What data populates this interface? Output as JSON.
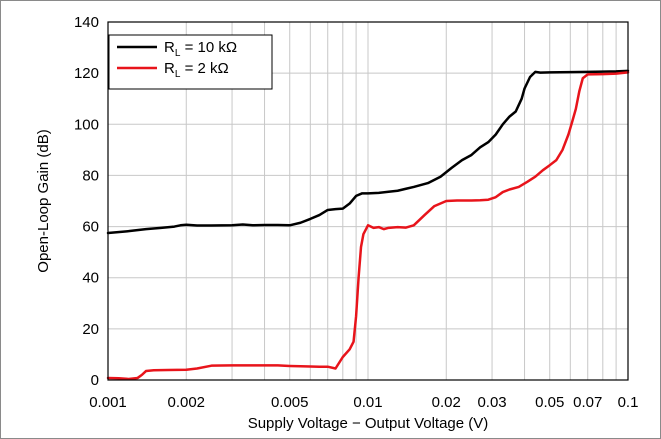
{
  "chart_data": {
    "type": "line",
    "xlabel": "Supply Voltage − Output Voltage (V)",
    "ylabel": "Open-Loop Gain (dB)",
    "x_scale": "log",
    "xlim": [
      0.001,
      0.1
    ],
    "ylim": [
      0,
      140
    ],
    "grid": true,
    "legend_placement": "top-left",
    "x_tick_values": [
      0.001,
      0.002,
      0.005,
      0.01,
      0.02,
      0.03,
      0.05,
      0.07,
      0.1
    ],
    "x_tick_labels": [
      "0.001",
      "0.002",
      "0.005",
      "0.01",
      "0.02",
      "0.03",
      "0.05",
      "0.07",
      "0.1"
    ],
    "y_tick_values": [
      0,
      20,
      40,
      60,
      80,
      100,
      120,
      140
    ],
    "y_tick_labels": [
      "0",
      "20",
      "40",
      "60",
      "80",
      "100",
      "120",
      "140"
    ],
    "series": [
      {
        "name": "R_L = 10 kΩ",
        "label_main": "R",
        "label_sub": "L",
        "label_rest": " = 10 kΩ",
        "color": "#000000",
        "points": [
          [
            0.001,
            57.5
          ],
          [
            0.0012,
            58.2
          ],
          [
            0.0014,
            59.0
          ],
          [
            0.0016,
            59.5
          ],
          [
            0.0018,
            60.0
          ],
          [
            0.0019,
            60.5
          ],
          [
            0.002,
            60.7
          ],
          [
            0.0022,
            60.4
          ],
          [
            0.0025,
            60.4
          ],
          [
            0.003,
            60.5
          ],
          [
            0.0033,
            60.8
          ],
          [
            0.0036,
            60.5
          ],
          [
            0.004,
            60.6
          ],
          [
            0.0045,
            60.6
          ],
          [
            0.005,
            60.5
          ],
          [
            0.0055,
            61.5
          ],
          [
            0.006,
            63.0
          ],
          [
            0.0065,
            64.5
          ],
          [
            0.007,
            66.5
          ],
          [
            0.0075,
            66.8
          ],
          [
            0.008,
            67.0
          ],
          [
            0.0085,
            69.0
          ],
          [
            0.009,
            72.0
          ],
          [
            0.0095,
            73.0
          ],
          [
            0.01,
            73.0
          ],
          [
            0.011,
            73.2
          ],
          [
            0.012,
            73.6
          ],
          [
            0.013,
            74.0
          ],
          [
            0.014,
            74.8
          ],
          [
            0.015,
            75.5
          ],
          [
            0.017,
            77.0
          ],
          [
            0.019,
            79.5
          ],
          [
            0.021,
            83.0
          ],
          [
            0.023,
            86.0
          ],
          [
            0.025,
            88.0
          ],
          [
            0.027,
            91.0
          ],
          [
            0.029,
            93.0
          ],
          [
            0.031,
            96.0
          ],
          [
            0.033,
            100.0
          ],
          [
            0.035,
            103.0
          ],
          [
            0.037,
            105.0
          ],
          [
            0.039,
            110.0
          ],
          [
            0.04,
            114.0
          ],
          [
            0.042,
            118.5
          ],
          [
            0.044,
            120.5
          ],
          [
            0.046,
            120.2
          ],
          [
            0.05,
            120.3
          ],
          [
            0.06,
            120.4
          ],
          [
            0.07,
            120.5
          ],
          [
            0.08,
            120.6
          ],
          [
            0.09,
            120.7
          ],
          [
            0.1,
            120.9
          ]
        ]
      },
      {
        "name": "R_L = 2 kΩ",
        "label_main": "R",
        "label_sub": "L",
        "label_rest": " = 2 kΩ",
        "color": "#e8141b",
        "points": [
          [
            0.001,
            0.8
          ],
          [
            0.0011,
            0.7
          ],
          [
            0.0012,
            0.4
          ],
          [
            0.0013,
            0.8
          ],
          [
            0.00135,
            2.0
          ],
          [
            0.0014,
            3.5
          ],
          [
            0.0015,
            3.8
          ],
          [
            0.0017,
            3.9
          ],
          [
            0.002,
            4.0
          ],
          [
            0.0022,
            4.5
          ],
          [
            0.0025,
            5.6
          ],
          [
            0.003,
            5.7
          ],
          [
            0.0035,
            5.7
          ],
          [
            0.004,
            5.7
          ],
          [
            0.0045,
            5.7
          ],
          [
            0.005,
            5.5
          ],
          [
            0.0055,
            5.4
          ],
          [
            0.006,
            5.3
          ],
          [
            0.0065,
            5.2
          ],
          [
            0.007,
            5.2
          ],
          [
            0.0075,
            4.5
          ],
          [
            0.008,
            9.0
          ],
          [
            0.0085,
            12.0
          ],
          [
            0.0088,
            15.0
          ],
          [
            0.009,
            25.0
          ],
          [
            0.0092,
            40.0
          ],
          [
            0.0094,
            52.0
          ],
          [
            0.0096,
            57.0
          ],
          [
            0.01,
            60.5
          ],
          [
            0.0105,
            59.5
          ],
          [
            0.011,
            59.8
          ],
          [
            0.0115,
            59.0
          ],
          [
            0.012,
            59.5
          ],
          [
            0.013,
            59.8
          ],
          [
            0.014,
            59.6
          ],
          [
            0.015,
            60.5
          ],
          [
            0.0165,
            64.5
          ],
          [
            0.018,
            68.0
          ],
          [
            0.02,
            70.0
          ],
          [
            0.022,
            70.2
          ],
          [
            0.025,
            70.2
          ],
          [
            0.027,
            70.3
          ],
          [
            0.029,
            70.5
          ],
          [
            0.031,
            71.5
          ],
          [
            0.033,
            73.5
          ],
          [
            0.035,
            74.5
          ],
          [
            0.038,
            75.5
          ],
          [
            0.041,
            77.5
          ],
          [
            0.044,
            79.5
          ],
          [
            0.047,
            82.0
          ],
          [
            0.05,
            84.0
          ],
          [
            0.053,
            86.0
          ],
          [
            0.056,
            90.0
          ],
          [
            0.059,
            96.0
          ],
          [
            0.061,
            101.0
          ],
          [
            0.063,
            106.0
          ],
          [
            0.065,
            113.0
          ],
          [
            0.067,
            118.0
          ],
          [
            0.07,
            119.5
          ],
          [
            0.08,
            119.6
          ],
          [
            0.09,
            119.8
          ],
          [
            0.1,
            120.3
          ]
        ]
      }
    ]
  }
}
